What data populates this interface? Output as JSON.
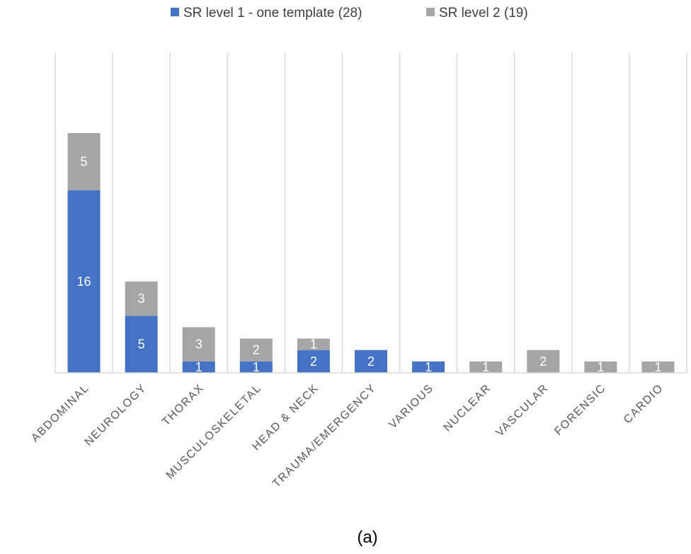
{
  "chart_data": {
    "type": "bar",
    "stacked": true,
    "categories": [
      "ABDOMINAL",
      "NEUROLOGY",
      "THORAX",
      "MUSCULOSKELETAL",
      "HEAD & NECK",
      "TRAUMA/EMERGENCY",
      "VARIOUS",
      "NUCLEAR",
      "VASCULAR",
      "FORENSIC",
      "CARDIO"
    ],
    "series": [
      {
        "name": "SR level 1 - one template (28)",
        "color": "#4472c4",
        "values": [
          16,
          5,
          1,
          1,
          2,
          2,
          1,
          0,
          0,
          0,
          0
        ]
      },
      {
        "name": "SR level 2 (19)",
        "color": "#a5a5a5",
        "values": [
          5,
          3,
          3,
          2,
          1,
          0,
          0,
          1,
          2,
          1,
          1
        ]
      }
    ],
    "ylim": [
      0,
      28
    ],
    "grid": true,
    "legend": "top-center",
    "caption": "(a)"
  }
}
